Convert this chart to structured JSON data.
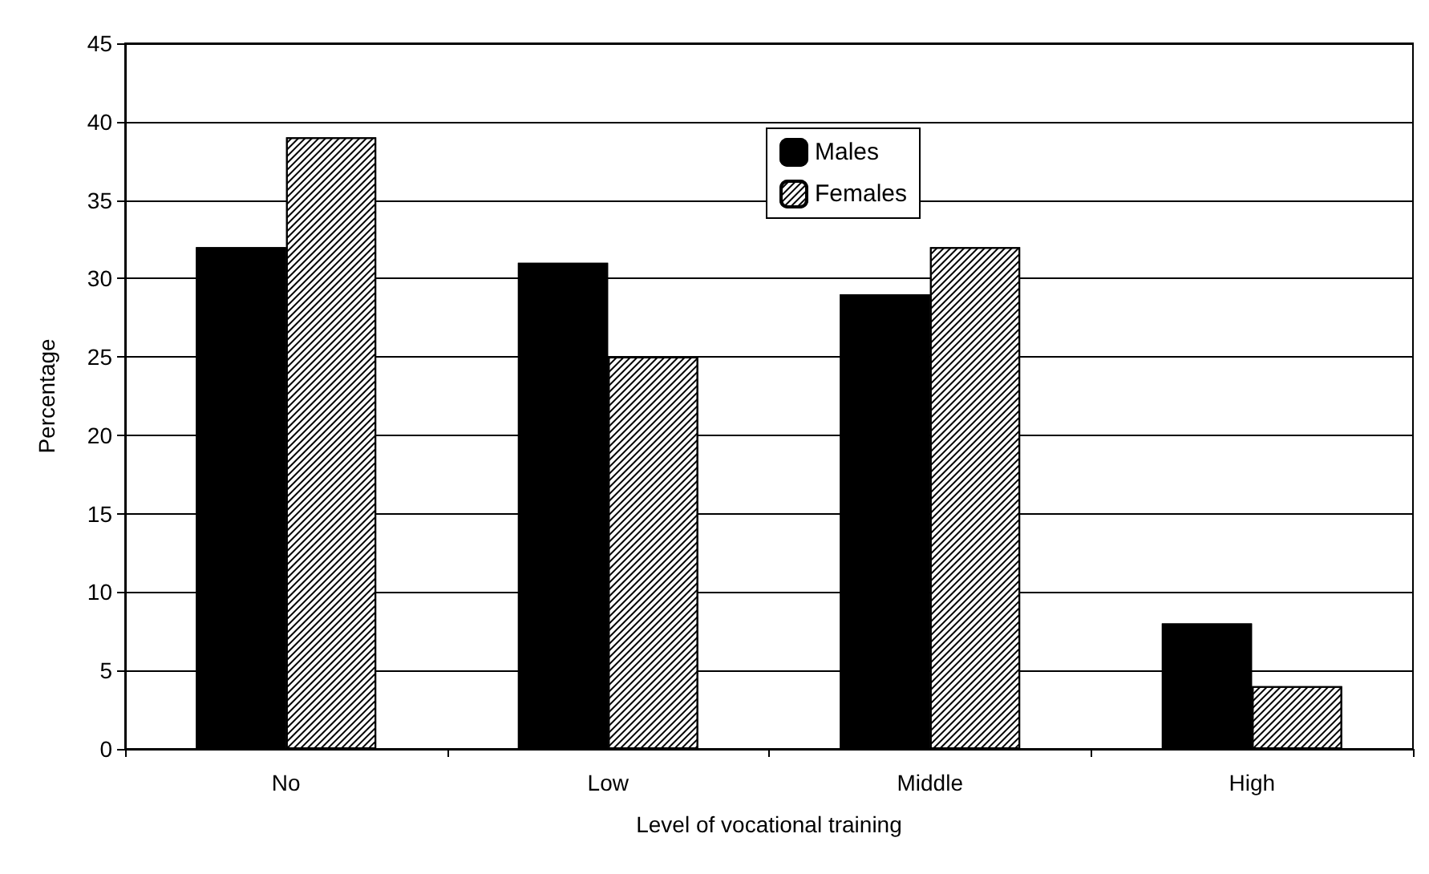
{
  "chart_data": {
    "type": "bar",
    "xlabel": "Level of vocational training",
    "ylabel": "Percentage",
    "categories": [
      "No",
      "Low",
      "Middle",
      "High"
    ],
    "series": [
      {
        "name": "Males",
        "color": "#000000",
        "values": [
          32,
          31,
          29,
          8
        ]
      },
      {
        "name": "Females",
        "color": "#ffffff",
        "values": [
          39,
          25,
          32,
          4
        ]
      }
    ],
    "ylim": [
      0,
      45
    ],
    "yticks": [
      0,
      5,
      10,
      15,
      20,
      25,
      30,
      35,
      40,
      45
    ],
    "grid": "y",
    "legend": "top"
  }
}
